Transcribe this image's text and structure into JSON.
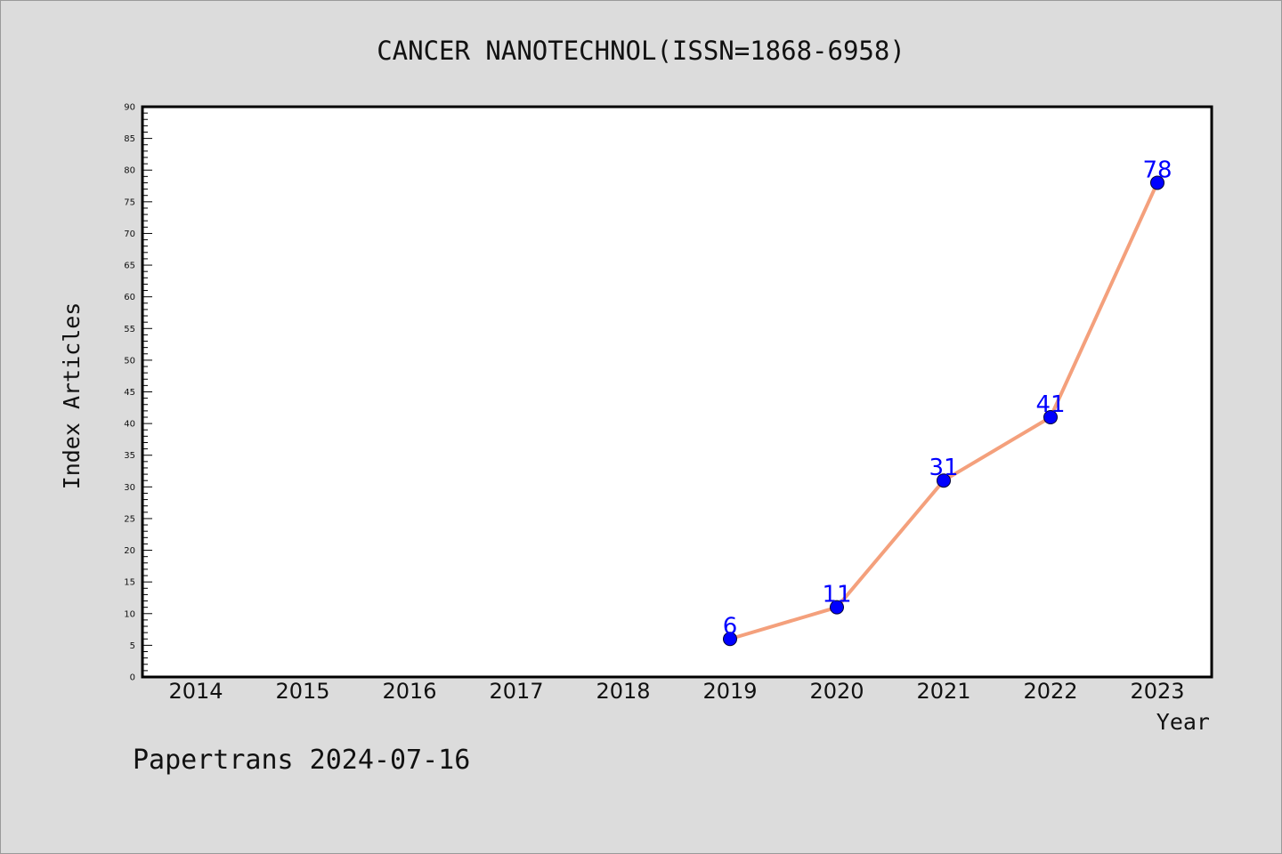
{
  "chart_data": {
    "type": "line",
    "title": "CANCER NANOTECHNOL(ISSN=1868-6958)",
    "xlabel": "Year",
    "ylabel": "Index Articles",
    "categories": [
      "2014",
      "2015",
      "2016",
      "2017",
      "2018",
      "2019",
      "2020",
      "2021",
      "2022",
      "2023"
    ],
    "series": [
      {
        "x": [
          "2019",
          "2020",
          "2021",
          "2022",
          "2023"
        ],
        "values": [
          6,
          11,
          31,
          41,
          78
        ],
        "line_color": "#f4a07c",
        "marker_color": "#0000ff"
      }
    ],
    "ylim": [
      0,
      90
    ],
    "y_major_step": 5,
    "y_minor_step": 1,
    "grid": false,
    "legend": "none"
  },
  "footer": {
    "text": "Papertrans 2024-07-16"
  }
}
